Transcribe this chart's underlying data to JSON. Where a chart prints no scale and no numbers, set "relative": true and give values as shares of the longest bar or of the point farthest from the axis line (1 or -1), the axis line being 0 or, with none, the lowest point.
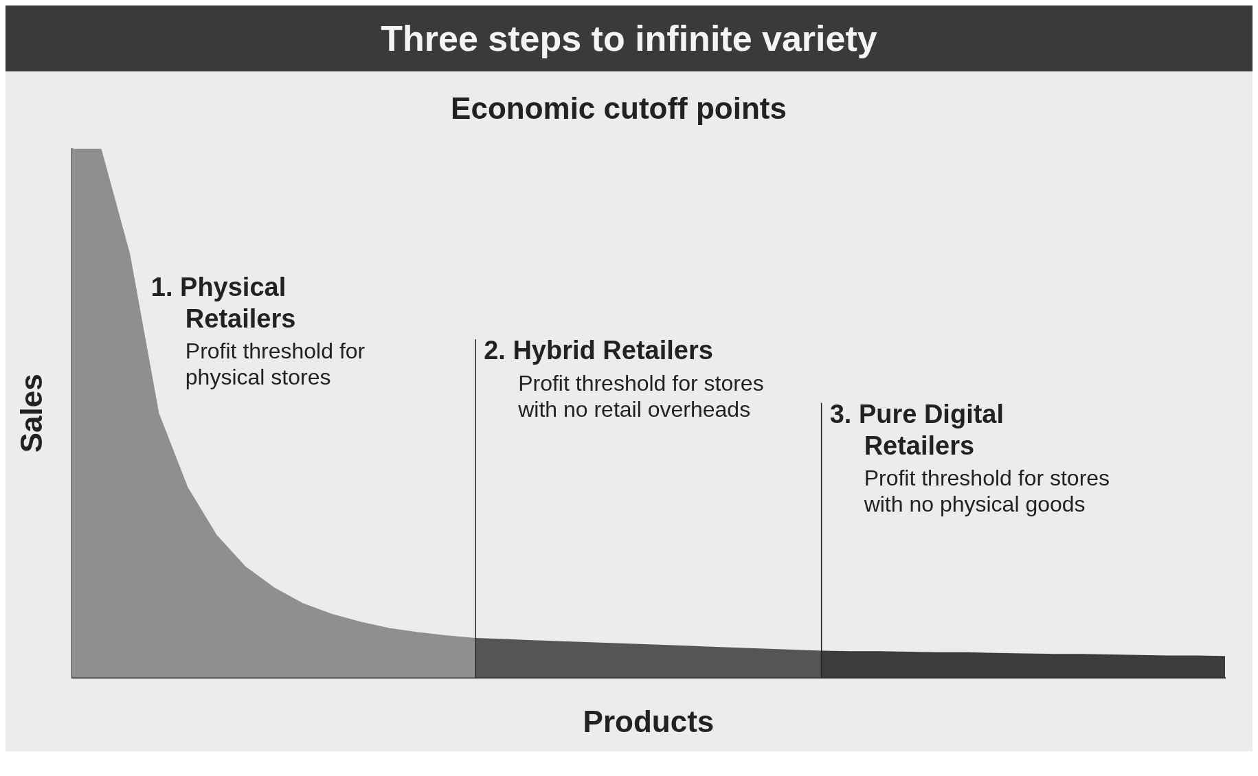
{
  "chart_data": {
    "type": "area",
    "title": "Three steps to infinite variety",
    "subtitle": "Economic cutoff points",
    "xlabel": "Products",
    "ylabel": "Sales",
    "relative": true,
    "grid": false,
    "legend": false,
    "marker": "none",
    "categories": [
      null,
      null,
      null,
      null,
      null,
      null,
      null,
      null,
      null,
      null,
      null,
      null,
      null,
      null,
      null,
      null,
      null,
      null,
      null,
      null,
      null,
      null,
      null,
      null,
      null,
      null,
      null,
      null,
      null,
      null,
      null,
      null,
      null,
      null,
      null,
      null,
      null,
      null,
      null,
      null,
      null
    ],
    "series": [
      {
        "color": "#8f8f8f",
        "values": [
          1,
          1,
          0.8,
          0.5,
          0.36,
          0.27,
          0.21,
          0.17,
          0.14,
          0.12,
          0.105,
          0.093,
          0.085,
          0.079,
          0.074,
          null,
          null,
          null,
          null,
          null,
          null,
          null,
          null,
          null,
          null,
          null,
          null,
          null,
          null,
          null,
          null,
          null,
          null,
          null,
          null,
          null,
          null,
          null,
          null,
          null,
          null
        ]
      },
      {
        "color": "#555555",
        "values": [
          null,
          null,
          null,
          null,
          null,
          null,
          null,
          null,
          null,
          null,
          null,
          null,
          null,
          null,
          0.074,
          0.072,
          0.07,
          0.068,
          0.066,
          0.064,
          0.062,
          0.06,
          0.058,
          0.056,
          0.054,
          0.052,
          0.05,
          null,
          null,
          null,
          null,
          null,
          null,
          null,
          null,
          null,
          null,
          null,
          null,
          null,
          null
        ]
      },
      {
        "color": "#3c3c3c",
        "values": [
          null,
          null,
          null,
          null,
          null,
          null,
          null,
          null,
          null,
          null,
          null,
          null,
          null,
          null,
          null,
          null,
          null,
          null,
          null,
          null,
          null,
          null,
          null,
          null,
          null,
          null,
          0.05,
          0.049,
          0.049,
          0.048,
          0.047,
          0.047,
          0.046,
          0.045,
          0.044,
          0.044,
          0.043,
          0.042,
          0.041,
          0.041,
          0.04
        ]
      }
    ],
    "annotations": [
      "1. Physical Retailers",
      "Profit threshold for physical stores",
      "2. Hybrid Retailers",
      "Profit threshold for stores with no retail overheads",
      "3. Pure Digital Retailers",
      "Profit threshold for stores with no physical goods"
    ]
  }
}
